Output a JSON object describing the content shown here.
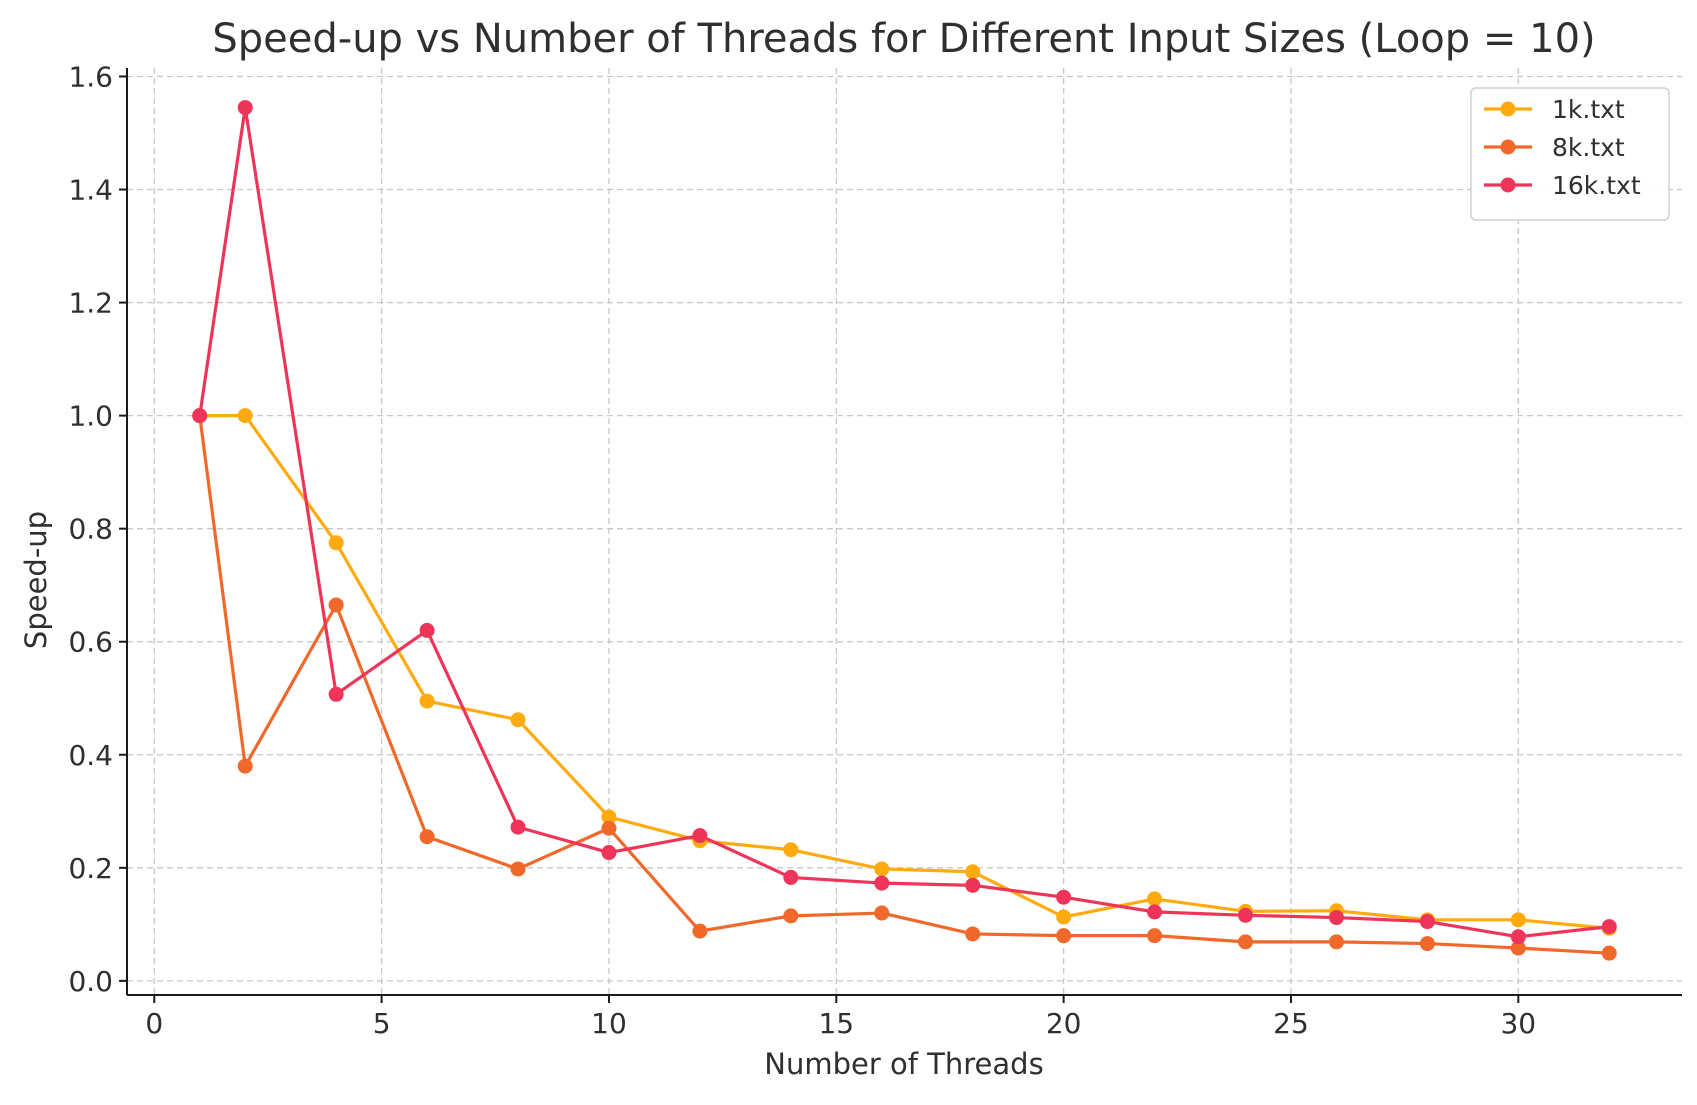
{
  "chart_data": {
    "type": "line",
    "title": "Speed-up vs Number of Threads for Different Input Sizes (Loop = 10)",
    "xlabel": "Number of Threads",
    "ylabel": "Speed-up",
    "xlim": [
      -0.6,
      33.6
    ],
    "ylim": [
      -0.025,
      1.615
    ],
    "xticks": [
      0,
      5,
      10,
      15,
      20,
      25,
      30
    ],
    "yticks": [
      0.0,
      0.2,
      0.4,
      0.6,
      0.8,
      1.0,
      1.2,
      1.4,
      1.6
    ],
    "xtick_labels": [
      "0",
      "5",
      "10",
      "15",
      "20",
      "25",
      "30"
    ],
    "ytick_labels": [
      "0.0",
      "0.2",
      "0.4",
      "0.6",
      "0.8",
      "1.0",
      "1.2",
      "1.4",
      "1.6"
    ],
    "grid": true,
    "legend_position": "top-right",
    "x": [
      1,
      2,
      4,
      6,
      8,
      10,
      12,
      14,
      16,
      18,
      20,
      22,
      24,
      26,
      28,
      30,
      32
    ],
    "series": [
      {
        "name": "1k.txt",
        "color": "#FFAB0F",
        "values": [
          1.0,
          1.0,
          0.775,
          0.495,
          0.462,
          0.29,
          0.248,
          0.232,
          0.198,
          0.193,
          0.113,
          0.145,
          0.123,
          0.124,
          0.108,
          0.108,
          0.093
        ]
      },
      {
        "name": "8k.txt",
        "color": "#F0692A",
        "values": [
          1.0,
          0.38,
          0.665,
          0.255,
          0.198,
          0.27,
          0.088,
          0.115,
          0.12,
          0.083,
          0.08,
          0.08,
          0.069,
          0.069,
          0.066,
          0.058,
          0.049
        ]
      },
      {
        "name": "16k.txt",
        "color": "#EE3559",
        "values": [
          1.0,
          1.545,
          0.507,
          0.62,
          0.272,
          0.227,
          0.257,
          0.183,
          0.173,
          0.169,
          0.148,
          0.122,
          0.116,
          0.112,
          0.105,
          0.078,
          0.096
        ]
      }
    ]
  }
}
